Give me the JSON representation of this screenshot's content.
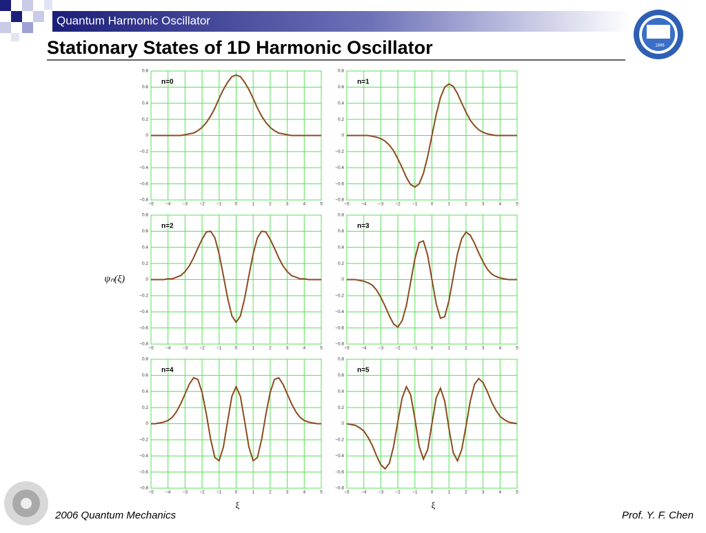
{
  "header": {
    "section": "Quantum Harmonic Oscillator",
    "title": "Stationary States of 1D Harmonic Oscillator",
    "logo_text": "1896"
  },
  "footer": {
    "left": "2006 Quantum Mechanics",
    "right": "Prof. Y. F. Chen"
  },
  "chart_data": [
    {
      "type": "line",
      "annotation": "n=0",
      "color": "#8b4a1f",
      "grid": true,
      "xlim": [
        -5,
        5
      ],
      "ylim": [
        -0.8,
        0.8
      ],
      "xticks": [
        {
          "value": -5,
          "label": "−5"
        },
        {
          "value": -4,
          "label": "−4"
        },
        {
          "value": -3,
          "label": "−3"
        },
        {
          "value": -2,
          "label": "−2"
        },
        {
          "value": -1,
          "label": "−1"
        },
        0,
        1,
        2,
        3,
        4,
        5
      ],
      "yticks": [
        0.8,
        0.6,
        0.4,
        0.2,
        0,
        {
          "value": -0.2,
          "label": "−0.2"
        },
        {
          "value": -0.4,
          "label": "−0.4"
        },
        {
          "value": -0.6,
          "label": "−0.6"
        },
        {
          "value": -0.8,
          "label": "−0.8"
        }
      ],
      "x": [
        -5,
        -4.75,
        -4.5,
        -4.25,
        -4,
        -3.75,
        -3.5,
        -3.25,
        -3,
        -2.75,
        -2.5,
        -2.25,
        -2,
        -1.75,
        -1.5,
        -1.25,
        -1,
        -0.75,
        -0.5,
        -0.25,
        0,
        0.25,
        0.5,
        0.75,
        1,
        1.25,
        1.5,
        1.75,
        2,
        2.25,
        2.5,
        2.75,
        3,
        3.25,
        3.5,
        3.75,
        4,
        4.25,
        4.5,
        4.75,
        5
      ],
      "values": [
        0,
        0,
        0,
        0,
        0,
        0,
        0,
        0,
        0.01,
        0.02,
        0.03,
        0.06,
        0.1,
        0.16,
        0.24,
        0.34,
        0.46,
        0.57,
        0.66,
        0.73,
        0.75,
        0.73,
        0.66,
        0.57,
        0.46,
        0.34,
        0.24,
        0.16,
        0.1,
        0.06,
        0.03,
        0.02,
        0.01,
        0,
        0,
        0,
        0,
        0,
        0,
        0,
        0
      ]
    },
    {
      "type": "line",
      "annotation": "n=1",
      "color": "#8b4a1f",
      "grid": true,
      "xlim": [
        -5,
        5
      ],
      "ylim": [
        -0.8,
        0.8
      ],
      "xticks": [
        {
          "value": -5,
          "label": "−5"
        },
        {
          "value": -4,
          "label": "−4"
        },
        {
          "value": -3,
          "label": "−3"
        },
        {
          "value": -2,
          "label": "−2"
        },
        {
          "value": -1,
          "label": "−1"
        },
        0,
        1,
        2,
        3,
        4,
        5
      ],
      "yticks": [
        0.8,
        0.6,
        0.4,
        0.2,
        0,
        {
          "value": -0.2,
          "label": "−0.2"
        },
        {
          "value": -0.4,
          "label": "−0.4"
        },
        {
          "value": -0.6,
          "label": "−0.6"
        },
        {
          "value": -0.8,
          "label": "−0.8"
        }
      ],
      "x": [
        -5,
        -4.75,
        -4.5,
        -4.25,
        -4,
        -3.75,
        -3.5,
        -3.25,
        -3,
        -2.75,
        -2.5,
        -2.25,
        -2,
        -1.75,
        -1.5,
        -1.25,
        -1,
        -0.75,
        -0.5,
        -0.25,
        0,
        0.25,
        0.5,
        0.75,
        1,
        1.25,
        1.5,
        1.75,
        2,
        2.25,
        2.5,
        2.75,
        3,
        3.25,
        3.5,
        3.75,
        4,
        4.25,
        4.5,
        4.75,
        5
      ],
      "values": [
        0,
        0,
        0,
        0,
        0,
        0,
        -0.01,
        -0.02,
        -0.04,
        -0.07,
        -0.12,
        -0.19,
        -0.29,
        -0.4,
        -0.52,
        -0.61,
        -0.64,
        -0.6,
        -0.47,
        -0.26,
        0,
        0.26,
        0.47,
        0.6,
        0.64,
        0.61,
        0.52,
        0.4,
        0.29,
        0.19,
        0.12,
        0.07,
        0.04,
        0.02,
        0.01,
        0,
        0,
        0,
        0,
        0,
        0
      ]
    },
    {
      "type": "line",
      "annotation": "n=2",
      "ylabel": "ψₙ(ξ)",
      "color": "#8b4a1f",
      "grid": true,
      "xlim": [
        -5,
        5
      ],
      "ylim": [
        -0.8,
        0.8
      ],
      "xticks": [
        {
          "value": -5,
          "label": "−5"
        },
        {
          "value": -4,
          "label": "−4"
        },
        {
          "value": -3,
          "label": "−3"
        },
        {
          "value": -2,
          "label": "−2"
        },
        {
          "value": -1,
          "label": "−1"
        },
        0,
        1,
        2,
        3,
        4,
        5
      ],
      "yticks": [
        0.8,
        0.6,
        0.4,
        0.2,
        0,
        {
          "value": -0.2,
          "label": "−0.2"
        },
        {
          "value": -0.4,
          "label": "−0.4"
        },
        {
          "value": -0.6,
          "label": "−0.6"
        },
        {
          "value": -0.8,
          "label": "−0.8"
        }
      ],
      "x": [
        -5,
        -4.75,
        -4.5,
        -4.25,
        -4,
        -3.75,
        -3.5,
        -3.25,
        -3,
        -2.75,
        -2.5,
        -2.25,
        -2,
        -1.75,
        -1.5,
        -1.25,
        -1,
        -0.75,
        -0.5,
        -0.25,
        0,
        0.25,
        0.5,
        0.75,
        1,
        1.25,
        1.5,
        1.75,
        2,
        2.25,
        2.5,
        2.75,
        3,
        3.25,
        3.5,
        3.75,
        4,
        4.25,
        4.5,
        4.75,
        5
      ],
      "values": [
        0,
        0,
        0,
        0,
        0.01,
        0.01,
        0.03,
        0.05,
        0.1,
        0.17,
        0.27,
        0.39,
        0.5,
        0.59,
        0.6,
        0.52,
        0.32,
        0.05,
        -0.23,
        -0.45,
        -0.53,
        -0.45,
        -0.23,
        0.05,
        0.32,
        0.52,
        0.6,
        0.59,
        0.5,
        0.39,
        0.27,
        0.17,
        0.1,
        0.05,
        0.03,
        0.01,
        0.01,
        0,
        0,
        0,
        0
      ]
    },
    {
      "type": "line",
      "annotation": "n=3",
      "color": "#8b4a1f",
      "grid": true,
      "xlim": [
        -5,
        5
      ],
      "ylim": [
        -0.8,
        0.8
      ],
      "xticks": [
        {
          "value": -5,
          "label": "−5"
        },
        {
          "value": -4,
          "label": "−4"
        },
        {
          "value": -3,
          "label": "−3"
        },
        {
          "value": -2,
          "label": "−2"
        },
        {
          "value": -1,
          "label": "−1"
        },
        0,
        1,
        2,
        3,
        4,
        5
      ],
      "yticks": [
        0.8,
        0.6,
        0.4,
        0.2,
        0,
        {
          "value": -0.2,
          "label": "−0.2"
        },
        {
          "value": -0.4,
          "label": "−0.4"
        },
        {
          "value": -0.6,
          "label": "−0.6"
        },
        {
          "value": -0.8,
          "label": "−0.8"
        }
      ],
      "x": [
        -5,
        -4.75,
        -4.5,
        -4.25,
        -4,
        -3.75,
        -3.5,
        -3.25,
        -3,
        -2.75,
        -2.5,
        -2.25,
        -2,
        -1.75,
        -1.5,
        -1.25,
        -1,
        -0.75,
        -0.5,
        -0.25,
        0,
        0.25,
        0.5,
        0.75,
        1,
        1.25,
        1.5,
        1.75,
        2,
        2.25,
        2.5,
        2.75,
        3,
        3.25,
        3.5,
        3.75,
        4,
        4.25,
        4.5,
        4.75,
        5
      ],
      "values": [
        0,
        0,
        0,
        -0.01,
        -0.02,
        -0.04,
        -0.07,
        -0.13,
        -0.22,
        -0.33,
        -0.45,
        -0.55,
        -0.59,
        -0.51,
        -0.32,
        -0.03,
        0.26,
        0.46,
        0.48,
        0.3,
        0,
        -0.3,
        -0.48,
        -0.46,
        -0.26,
        0.03,
        0.32,
        0.51,
        0.59,
        0.55,
        0.45,
        0.33,
        0.22,
        0.13,
        0.07,
        0.04,
        0.02,
        0.01,
        0,
        0,
        0
      ]
    },
    {
      "type": "line",
      "annotation": "n=4",
      "xlabel": "ξ",
      "color": "#8b4a1f",
      "grid": true,
      "xlim": [
        -5,
        5
      ],
      "ylim": [
        -0.8,
        0.8
      ],
      "xticks": [
        {
          "value": -5,
          "label": "−5"
        },
        {
          "value": -4,
          "label": "−4"
        },
        {
          "value": -3,
          "label": "−3"
        },
        {
          "value": -2,
          "label": "−2"
        },
        {
          "value": -1,
          "label": "−1"
        },
        0,
        1,
        2,
        3,
        4,
        5
      ],
      "yticks": [
        0.8,
        0.6,
        0.4,
        0.2,
        0,
        {
          "value": -0.2,
          "label": "−0.2"
        },
        {
          "value": -0.4,
          "label": "−0.4"
        },
        {
          "value": -0.6,
          "label": "−0.6"
        },
        {
          "value": -0.8,
          "label": "−0.8"
        }
      ],
      "x": [
        -5,
        -4.75,
        -4.5,
        -4.25,
        -4,
        -3.75,
        -3.5,
        -3.25,
        -3,
        -2.75,
        -2.5,
        -2.25,
        -2,
        -1.75,
        -1.5,
        -1.25,
        -1,
        -0.75,
        -0.5,
        -0.25,
        0,
        0.25,
        0.5,
        0.75,
        1,
        1.25,
        1.5,
        1.75,
        2,
        2.25,
        2.5,
        2.75,
        3,
        3.25,
        3.5,
        3.75,
        4,
        4.25,
        4.5,
        4.75,
        5
      ],
      "values": [
        0,
        0,
        0.01,
        0.02,
        0.04,
        0.08,
        0.15,
        0.25,
        0.37,
        0.49,
        0.57,
        0.55,
        0.39,
        0.12,
        -0.19,
        -0.42,
        -0.46,
        -0.29,
        0.03,
        0.34,
        0.46,
        0.34,
        0.03,
        -0.29,
        -0.46,
        -0.42,
        -0.19,
        0.12,
        0.39,
        0.55,
        0.57,
        0.49,
        0.37,
        0.25,
        0.15,
        0.08,
        0.04,
        0.02,
        0.01,
        0,
        0
      ]
    },
    {
      "type": "line",
      "annotation": "n=5",
      "xlabel": "ξ",
      "color": "#8b4a1f",
      "grid": true,
      "xlim": [
        -5,
        5
      ],
      "ylim": [
        -0.8,
        0.8
      ],
      "xticks": [
        {
          "value": -5,
          "label": "−5"
        },
        {
          "value": -4,
          "label": "−4"
        },
        {
          "value": -3,
          "label": "−3"
        },
        {
          "value": -2,
          "label": "−2"
        },
        {
          "value": -1,
          "label": "−1"
        },
        0,
        1,
        2,
        3,
        4,
        5
      ],
      "yticks": [
        0.8,
        0.6,
        0.4,
        0.2,
        0,
        {
          "value": -0.2,
          "label": "−0.2"
        },
        {
          "value": -0.4,
          "label": "−0.4"
        },
        {
          "value": -0.6,
          "label": "−0.6"
        },
        {
          "value": -0.8,
          "label": "−0.8"
        }
      ],
      "x": [
        -5,
        -4.75,
        -4.5,
        -4.25,
        -4,
        -3.75,
        -3.5,
        -3.25,
        -3,
        -2.75,
        -2.5,
        -2.25,
        -2,
        -1.75,
        -1.5,
        -1.25,
        -1,
        -0.75,
        -0.5,
        -0.25,
        0,
        0.25,
        0.5,
        0.75,
        1,
        1.25,
        1.5,
        1.75,
        2,
        2.25,
        2.5,
        2.75,
        3,
        3.25,
        3.5,
        3.75,
        4,
        4.25,
        4.5,
        4.75,
        5
      ],
      "values": [
        0,
        -0.01,
        -0.02,
        -0.05,
        -0.09,
        -0.17,
        -0.27,
        -0.4,
        -0.51,
        -0.56,
        -0.49,
        -0.28,
        0.03,
        0.32,
        0.46,
        0.36,
        0.06,
        -0.28,
        -0.44,
        -0.32,
        0,
        0.32,
        0.44,
        0.28,
        -0.06,
        -0.36,
        -0.46,
        -0.32,
        -0.03,
        0.28,
        0.49,
        0.56,
        0.51,
        0.4,
        0.27,
        0.17,
        0.09,
        0.05,
        0.02,
        0.01,
        0
      ]
    }
  ]
}
